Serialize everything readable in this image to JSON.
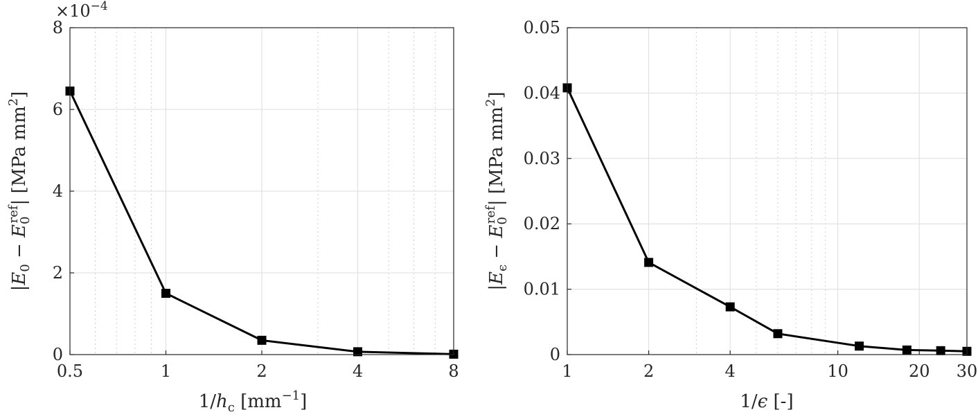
{
  "chart_data": [
    {
      "type": "line",
      "title": "",
      "xlabel": "1/h_c [mm^-1]",
      "xlabel_parts": {
        "pre": "1/",
        "var": "h",
        "sub": "c",
        "mid": " [mm",
        "sup": "−1",
        "post": "]"
      },
      "ylabel": "|E_0 − E_0^ref| [MPa mm^2]",
      "ylabel_parts": {
        "open": "|",
        "var": "E",
        "sub": "0",
        "minus": " − ",
        "var2": "E",
        "sub2": "0",
        "sup2": "ref",
        "close": "| [MPa mm",
        "sup3": "2",
        "end": "]"
      },
      "xscale": "log",
      "xlim": [
        0.5,
        8
      ],
      "ylim": [
        0,
        8
      ],
      "xticks": [
        0.5,
        1,
        2,
        4,
        8
      ],
      "xticklabels": [
        "0.5",
        "1",
        "2",
        "4",
        "8"
      ],
      "yticks": [
        0,
        2,
        4,
        6,
        8
      ],
      "yticklabels": [
        "0",
        "2",
        "4",
        "6",
        "8"
      ],
      "yexponent": {
        "base": "×10",
        "power": "−4"
      },
      "grid": true,
      "x": [
        0.5,
        1,
        2,
        4,
        8
      ],
      "y": [
        6.45,
        1.5,
        0.35,
        0.07,
        0.01
      ],
      "marker": "square",
      "color": "#000000"
    },
    {
      "type": "line",
      "title": "",
      "xlabel": "1/ϵ [-]",
      "xlabel_parts": {
        "pre": "1/",
        "var": "ϵ",
        "post": " [-]"
      },
      "ylabel": "|E_ϵ − E_0^ref| [MPa mm^2]",
      "ylabel_parts": {
        "open": "|",
        "var": "E",
        "sub": "ϵ",
        "minus": " − ",
        "var2": "E",
        "sub2": "0",
        "sup2": "ref",
        "close": "| [MPa mm",
        "sup3": "2",
        "end": "]"
      },
      "xscale": "log",
      "xlim": [
        1,
        30
      ],
      "ylim": [
        0,
        0.05
      ],
      "xticks": [
        1,
        2,
        4,
        10,
        20,
        30
      ],
      "xticklabels": [
        "1",
        "2",
        "4",
        "10",
        "20",
        "30"
      ],
      "yticks": [
        0,
        0.01,
        0.02,
        0.03,
        0.04,
        0.05
      ],
      "yticklabels": [
        "0",
        "0.01",
        "0.02",
        "0.03",
        "0.04",
        "0.05"
      ],
      "grid": true,
      "x": [
        1,
        2,
        4,
        6,
        12,
        18,
        24,
        30
      ],
      "y": [
        0.0408,
        0.0141,
        0.0073,
        0.0032,
        0.0013,
        0.0007,
        0.0006,
        0.0005
      ],
      "marker": "square",
      "color": "#000000"
    }
  ]
}
